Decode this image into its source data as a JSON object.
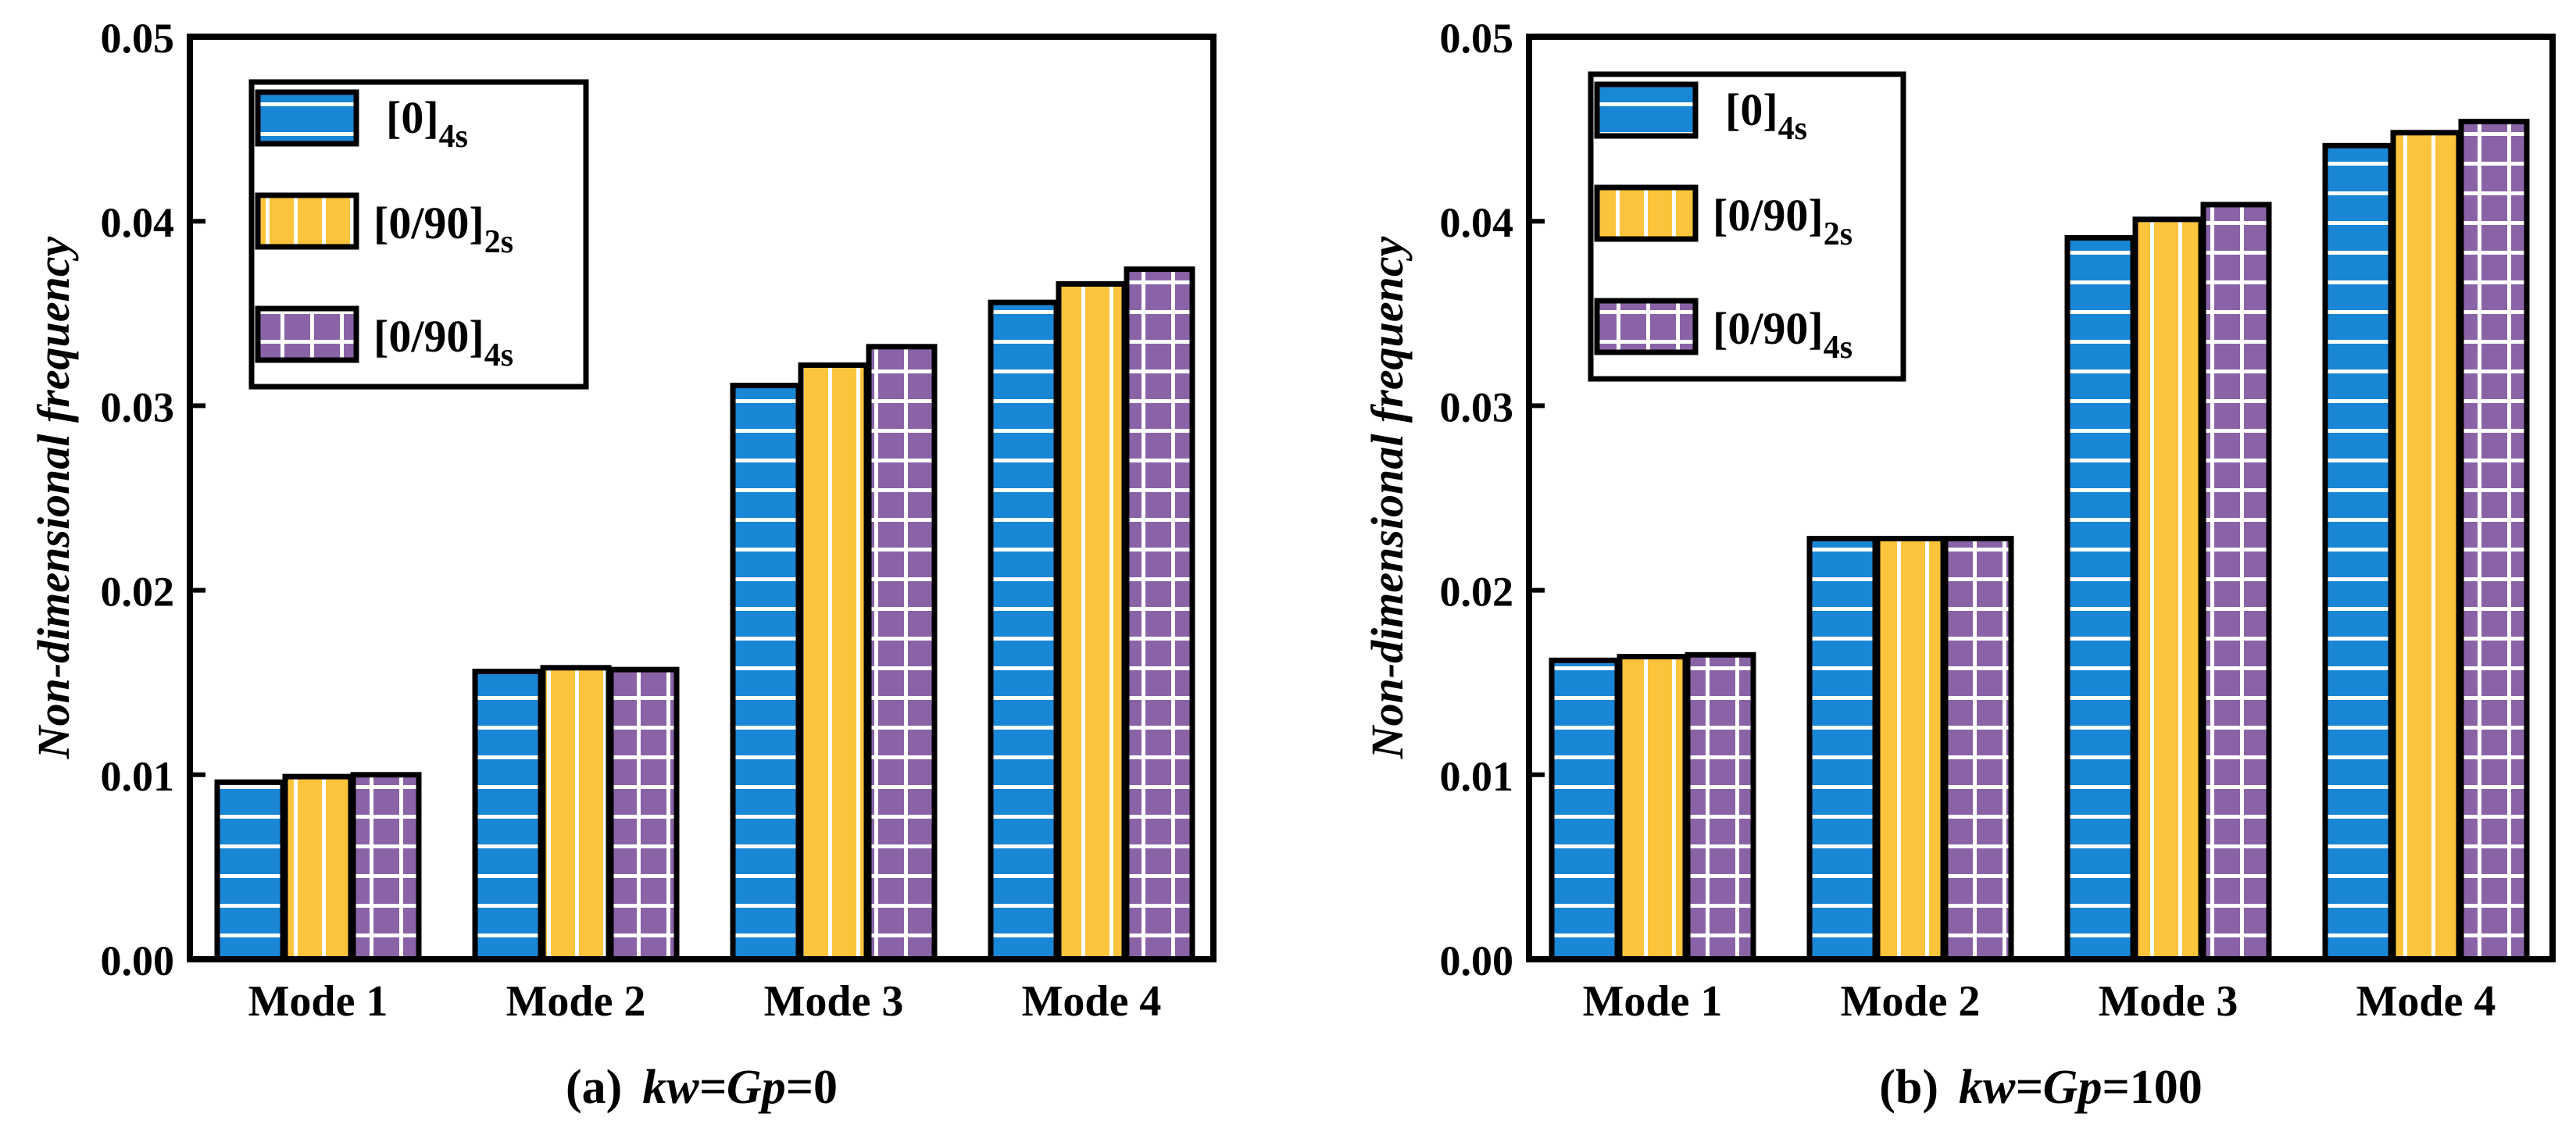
{
  "chart_data": [
    {
      "type": "bar",
      "panel_label": "(a)",
      "caption_var": "kw=Gp",
      "caption_value": "=0",
      "ylabel": "Non-dimensional frequency",
      "xlabel": "",
      "ylim": [
        0,
        0.05
      ],
      "yticks": [
        "0.00",
        "0.01",
        "0.02",
        "0.03",
        "0.04",
        "0.05"
      ],
      "categories": [
        "Mode 1",
        "Mode 2",
        "Mode 3",
        "Mode 4"
      ],
      "series": [
        {
          "name": "[0]",
          "subscript": "4s",
          "color": "#1a86d6",
          "pattern": "hlines",
          "values": [
            0.0096,
            0.0156,
            0.0311,
            0.0356
          ]
        },
        {
          "name": "[0/90]",
          "subscript": "2s",
          "color": "#fcc43c",
          "pattern": "vlines",
          "values": [
            0.0099,
            0.0158,
            0.0322,
            0.0366
          ]
        },
        {
          "name": "[0/90]",
          "subscript": "4s",
          "color": "#8a63a7",
          "pattern": "grid",
          "values": [
            0.01,
            0.0157,
            0.0332,
            0.0374
          ]
        }
      ],
      "legend_position": "top-left",
      "grid": false
    },
    {
      "type": "bar",
      "panel_label": "(b)",
      "caption_var": "kw=Gp",
      "caption_value": "=100",
      "ylabel": "Non-dimensional frequency",
      "xlabel": "",
      "ylim": [
        0,
        0.05
      ],
      "yticks": [
        "0.00",
        "0.01",
        "0.02",
        "0.03",
        "0.04",
        "0.05"
      ],
      "categories": [
        "Mode 1",
        "Mode 2",
        "Mode 3",
        "Mode 4"
      ],
      "series": [
        {
          "name": "[0]",
          "subscript": "4s",
          "color": "#1a86d6",
          "pattern": "hlines",
          "values": [
            0.0162,
            0.0228,
            0.0391,
            0.0441
          ]
        },
        {
          "name": "[0/90]",
          "subscript": "2s",
          "color": "#fcc43c",
          "pattern": "vlines",
          "values": [
            0.0164,
            0.0228,
            0.0401,
            0.0448
          ]
        },
        {
          "name": "[0/90]",
          "subscript": "4s",
          "color": "#8a63a7",
          "pattern": "grid",
          "values": [
            0.0165,
            0.0228,
            0.0409,
            0.0454
          ]
        }
      ],
      "legend_position": "top-left",
      "grid": false
    }
  ]
}
